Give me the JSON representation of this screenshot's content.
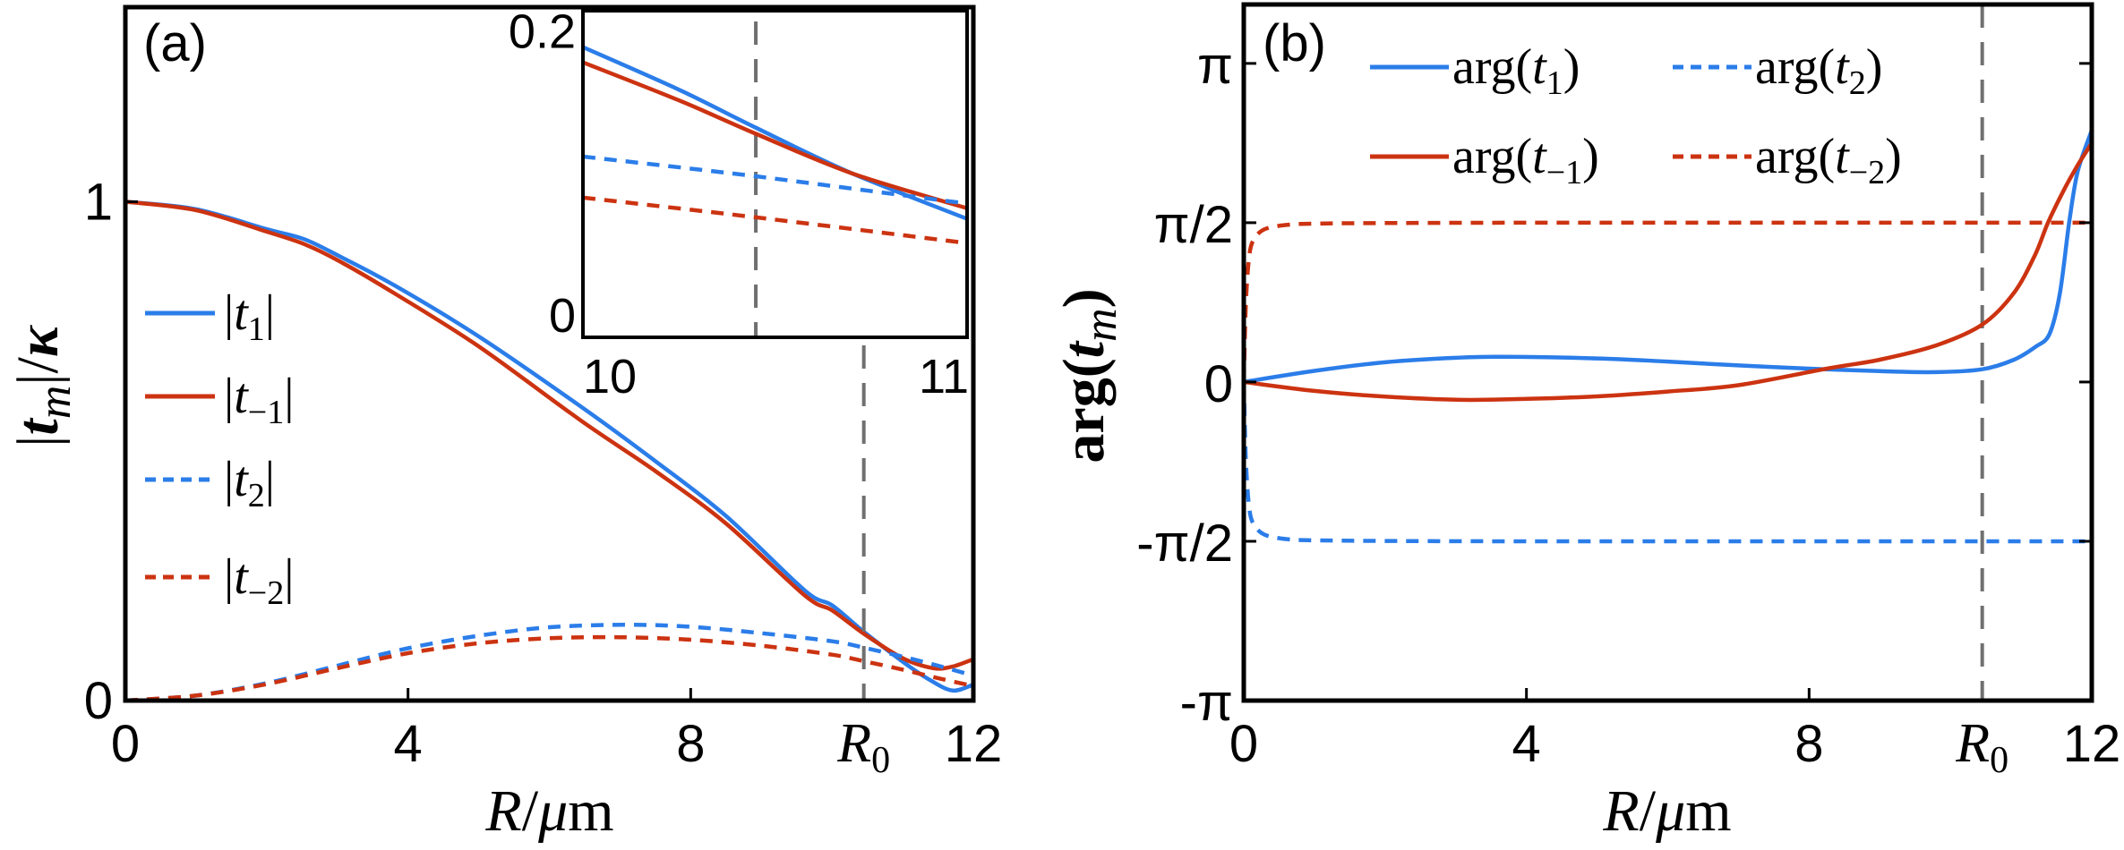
{
  "figure": {
    "colors": {
      "blue": "#2b7de9",
      "red": "#cc3311",
      "ref_line": "#707070",
      "axis": "#000000"
    }
  },
  "chart_data": [
    {
      "id": "a",
      "type": "line",
      "panel_label": "(a)",
      "xlabel": "R/μm",
      "ylabel": "|t_m|/κ",
      "xlim": [
        0,
        12
      ],
      "ylim": [
        0,
        1.39
      ],
      "x_ticks": [
        {
          "value": 0,
          "label": "0"
        },
        {
          "value": 4,
          "label": "4"
        },
        {
          "value": 8,
          "label": "8"
        },
        {
          "value": 10.45,
          "label": "R",
          "sub": "0"
        },
        {
          "value": 12,
          "label": "12"
        }
      ],
      "y_ticks": [
        {
          "value": 0,
          "label": "0"
        },
        {
          "value": 1,
          "label": "1"
        }
      ],
      "reference_line": {
        "x": 10.45,
        "label": "R0",
        "style": "dashed"
      },
      "legend": {
        "placement": "left",
        "entries": [
          "|t1|",
          "|t−1|",
          "|t2|",
          "|t−2|"
        ]
      },
      "series": [
        {
          "name": "|t1|",
          "legend_main": "t",
          "legend_sub": "1",
          "color": "blue",
          "style": "solid",
          "x": [
            0,
            1,
            2,
            2.53,
            3.04,
            3.8,
            5,
            6.46,
            7.5,
            8.5,
            9.62,
            10.0,
            10.45,
            11.0,
            11.4,
            11.71,
            12
          ],
          "y": [
            1.0,
            0.985,
            0.945,
            0.925,
            0.89,
            0.833,
            0.73,
            0.588,
            0.48,
            0.37,
            0.22,
            0.191,
            0.138,
            0.078,
            0.04,
            0.02,
            0.032
          ]
        },
        {
          "name": "|t−1|",
          "legend_main": "t",
          "legend_sub": "−1",
          "color": "red",
          "style": "solid",
          "x": [
            0,
            1,
            2,
            2.53,
            3.04,
            3.8,
            5,
            6.46,
            7.5,
            8.5,
            9.62,
            10.0,
            10.45,
            11.0,
            11.43,
            11.7,
            12
          ],
          "y": [
            1.0,
            0.983,
            0.94,
            0.915,
            0.88,
            0.817,
            0.71,
            0.56,
            0.46,
            0.355,
            0.21,
            0.181,
            0.134,
            0.085,
            0.065,
            0.068,
            0.083
          ]
        },
        {
          "name": "|t2|",
          "legend_main": "t",
          "legend_sub": "2",
          "color": "blue",
          "style": "dotted",
          "x": [
            0,
            1,
            2,
            3,
            4,
            5,
            6,
            7.09,
            8,
            9,
            10.0,
            10.45,
            11.0,
            11.5,
            12
          ],
          "y": [
            0.0,
            0.01,
            0.035,
            0.07,
            0.105,
            0.13,
            0.147,
            0.152,
            0.148,
            0.135,
            0.119,
            0.106,
            0.088,
            0.07,
            0.05
          ]
        },
        {
          "name": "|t−2|",
          "legend_main": "t",
          "legend_sub": "−2",
          "color": "red",
          "style": "dotted",
          "x": [
            0,
            1,
            2,
            3,
            4,
            5,
            6,
            7.0,
            8,
            9,
            10.0,
            10.45,
            11.0,
            11.5,
            12
          ],
          "y": [
            0.0,
            0.01,
            0.033,
            0.065,
            0.095,
            0.115,
            0.125,
            0.127,
            0.122,
            0.11,
            0.092,
            0.079,
            0.062,
            0.045,
            0.029
          ]
        }
      ],
      "inset": {
        "xlim": [
          10,
          11
        ],
        "ylim": [
          0,
          0.215
        ],
        "x_ticks": [
          {
            "value": 10,
            "label": "10"
          },
          {
            "value": 11,
            "label": "11"
          }
        ],
        "y_ticks": [
          {
            "value": 0,
            "label": "0"
          },
          {
            "value": 0.2,
            "label": "0.2"
          }
        ],
        "reference_line": {
          "x": 10.45,
          "style": "dashed"
        },
        "series": [
          {
            "name": "|t1|",
            "color": "blue",
            "style": "solid",
            "x": [
              10,
              10.25,
              10.45,
              10.7,
              11.0
            ],
            "y": [
              0.191,
              0.163,
              0.138,
              0.108,
              0.078
            ]
          },
          {
            "name": "|t−1|",
            "color": "red",
            "style": "solid",
            "x": [
              10,
              10.25,
              10.45,
              10.7,
              11.0
            ],
            "y": [
              0.181,
              0.156,
              0.134,
              0.108,
              0.085
            ]
          },
          {
            "name": "|t2|",
            "color": "blue",
            "style": "dotted",
            "x": [
              10,
              10.45,
              11.0
            ],
            "y": [
              0.119,
              0.106,
              0.088
            ]
          },
          {
            "name": "|t−2|",
            "color": "red",
            "style": "dotted",
            "x": [
              10,
              10.45,
              11.0
            ],
            "y": [
              0.092,
              0.079,
              0.062
            ]
          }
        ]
      }
    },
    {
      "id": "b",
      "type": "line",
      "panel_label": "(b)",
      "xlabel": "R/μm",
      "ylabel": "arg(t_m)",
      "y_unit": "π",
      "xlim": [
        0,
        12
      ],
      "ylim": [
        -1.0,
        1.185
      ],
      "x_ticks": [
        {
          "value": 0,
          "label": "0"
        },
        {
          "value": 4,
          "label": "4"
        },
        {
          "value": 8,
          "label": "8"
        },
        {
          "value": 10.45,
          "label": "R",
          "sub": "0"
        },
        {
          "value": 12,
          "label": "12"
        }
      ],
      "y_ticks": [
        {
          "value": 1.0,
          "label": "π"
        },
        {
          "value": 0.5,
          "label": "π/2"
        },
        {
          "value": 0,
          "label": "0"
        },
        {
          "value": -0.5,
          "label": "-π/2"
        },
        {
          "value": -1.0,
          "label": "-π"
        }
      ],
      "reference_line": {
        "x": 10.45,
        "label": "R0",
        "style": "dashed"
      },
      "legend": {
        "placement": "top",
        "entries": [
          "arg(t1)",
          "arg(t2)",
          "arg(t−1)",
          "arg(t−2)"
        ]
      },
      "series": [
        {
          "name": "arg(t1)",
          "legend_sub": "1",
          "color": "blue",
          "style": "solid",
          "x": [
            0,
            1,
            2,
            3,
            3.6,
            5,
            6,
            7,
            8,
            9,
            9.8,
            10.45,
            10.9,
            11.2,
            11.4,
            11.55,
            11.68,
            11.8,
            12
          ],
          "y": [
            0,
            0.035,
            0.062,
            0.076,
            0.079,
            0.074,
            0.064,
            0.052,
            0.042,
            0.034,
            0.031,
            0.04,
            0.07,
            0.11,
            0.15,
            0.28,
            0.5,
            0.66,
            0.79
          ]
        },
        {
          "name": "arg(t2)",
          "legend_sub": "2",
          "color": "blue",
          "style": "dotted",
          "x": [
            0,
            0.03,
            0.08,
            0.15,
            0.3,
            0.6,
            1,
            2,
            4,
            8,
            12
          ],
          "y": [
            0,
            -0.25,
            -0.4,
            -0.45,
            -0.48,
            -0.493,
            -0.497,
            -0.499,
            -0.5,
            -0.5,
            -0.5
          ]
        },
        {
          "name": "arg(t−1)",
          "legend_sub": "−1",
          "color": "red",
          "style": "solid",
          "x": [
            0,
            1,
            2,
            3.07,
            4,
            5,
            6,
            7,
            8.25,
            9,
            9.8,
            10.45,
            10.9,
            11.2,
            11.38,
            11.6,
            11.8,
            12
          ],
          "y": [
            0,
            -0.028,
            -0.046,
            -0.056,
            -0.053,
            -0.045,
            -0.03,
            -0.01,
            0.042,
            0.07,
            0.115,
            0.18,
            0.28,
            0.4,
            0.5,
            0.6,
            0.68,
            0.75
          ]
        },
        {
          "name": "arg(t−2)",
          "legend_sub": "−2",
          "color": "red",
          "style": "dotted",
          "x": [
            0,
            0.03,
            0.08,
            0.15,
            0.3,
            0.6,
            1,
            2,
            4,
            8,
            12
          ],
          "y": [
            0,
            0.25,
            0.4,
            0.45,
            0.48,
            0.493,
            0.497,
            0.499,
            0.5,
            0.5,
            0.5
          ]
        }
      ]
    }
  ]
}
